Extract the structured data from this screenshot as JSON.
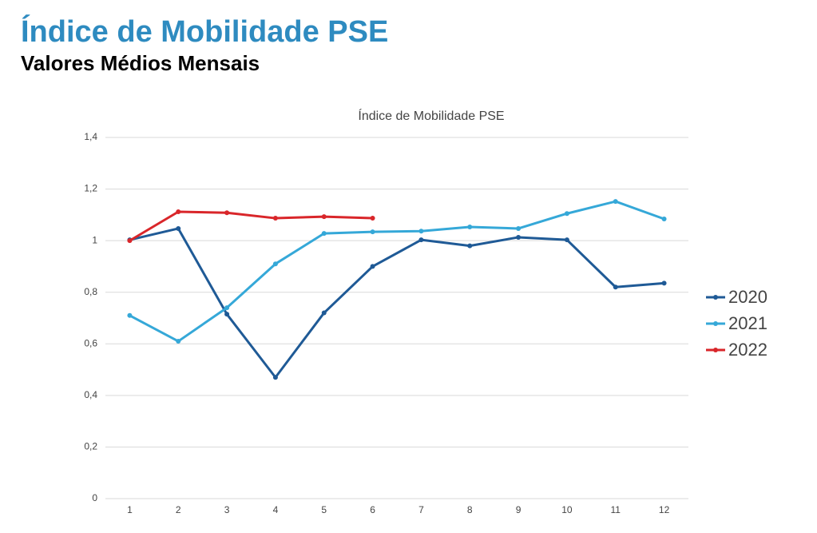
{
  "header": {
    "title": "Índice de Mobilidade PSE",
    "subtitle": "Valores Médios Mensais"
  },
  "chart_data": {
    "type": "line",
    "title": "Índice de Mobilidade PSE",
    "categories": [
      "1",
      "2",
      "3",
      "4",
      "5",
      "6",
      "7",
      "8",
      "9",
      "10",
      "11",
      "12"
    ],
    "series": [
      {
        "name": "2020",
        "color": "#1f5a96",
        "values": [
          1.003,
          1.047,
          0.715,
          0.47,
          0.72,
          0.9,
          1.003,
          0.98,
          1.013,
          1.003,
          0.82,
          0.835
        ]
      },
      {
        "name": "2021",
        "color": "#35a8d8",
        "values": [
          0.71,
          0.61,
          0.74,
          0.91,
          1.028,
          1.034,
          1.037,
          1.053,
          1.047,
          1.105,
          1.152,
          1.084
        ]
      },
      {
        "name": "2022",
        "color": "#d9262a",
        "values": [
          1.0,
          1.112,
          1.108,
          1.087,
          1.093,
          1.087,
          null,
          null,
          null,
          null,
          null,
          null
        ]
      }
    ],
    "ylim": [
      0,
      1.4
    ],
    "yticks": [
      0,
      {
        "value": 0.2,
        "label": "0,2"
      },
      {
        "value": 0.4,
        "label": "0,4"
      },
      {
        "value": 0.6,
        "label": "0,6"
      },
      {
        "value": 0.8,
        "label": "0,8"
      },
      1,
      {
        "value": 1.2,
        "label": "1,2"
      },
      {
        "value": 1.4,
        "label": "1,4"
      }
    ],
    "grid": true,
    "legend": "right"
  }
}
